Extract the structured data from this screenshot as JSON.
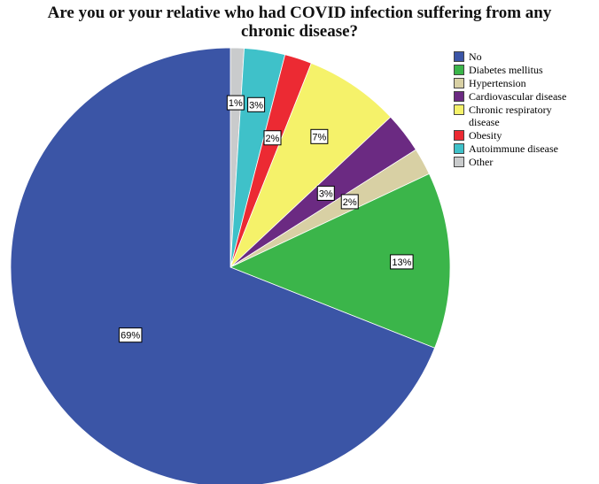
{
  "chart_data": {
    "type": "pie",
    "title_lines": [
      "Are you or your relative who had COVID infection suffering from any",
      "chronic disease?"
    ],
    "slices": [
      {
        "label": "No",
        "value": 69,
        "display": "69%",
        "color": "#3b55a6"
      },
      {
        "label": "Diabetes mellitus",
        "value": 13,
        "display": "13%",
        "color": "#3bb54a"
      },
      {
        "label": "Hypertension",
        "value": 2,
        "display": "2%",
        "color": "#d8d0a4"
      },
      {
        "label": "Cardiovascular disease",
        "value": 3,
        "display": "3%",
        "color": "#6b2a82"
      },
      {
        "label": "Chronic respiratory disease",
        "value": 7,
        "display": "7%",
        "color": "#f5f26a"
      },
      {
        "label": "Obesity",
        "value": 2,
        "display": "2%",
        "color": "#ec2a33"
      },
      {
        "label": "Autoimmune disease",
        "value": 3,
        "display": "3%",
        "color": "#3fc1c9"
      },
      {
        "label": "Other",
        "value": 1,
        "display": "1%",
        "color": "#c9cbcc"
      }
    ],
    "legend": {
      "position": "right"
    },
    "ordering": "clockwise from top, No shown counter-clockwise from top"
  }
}
